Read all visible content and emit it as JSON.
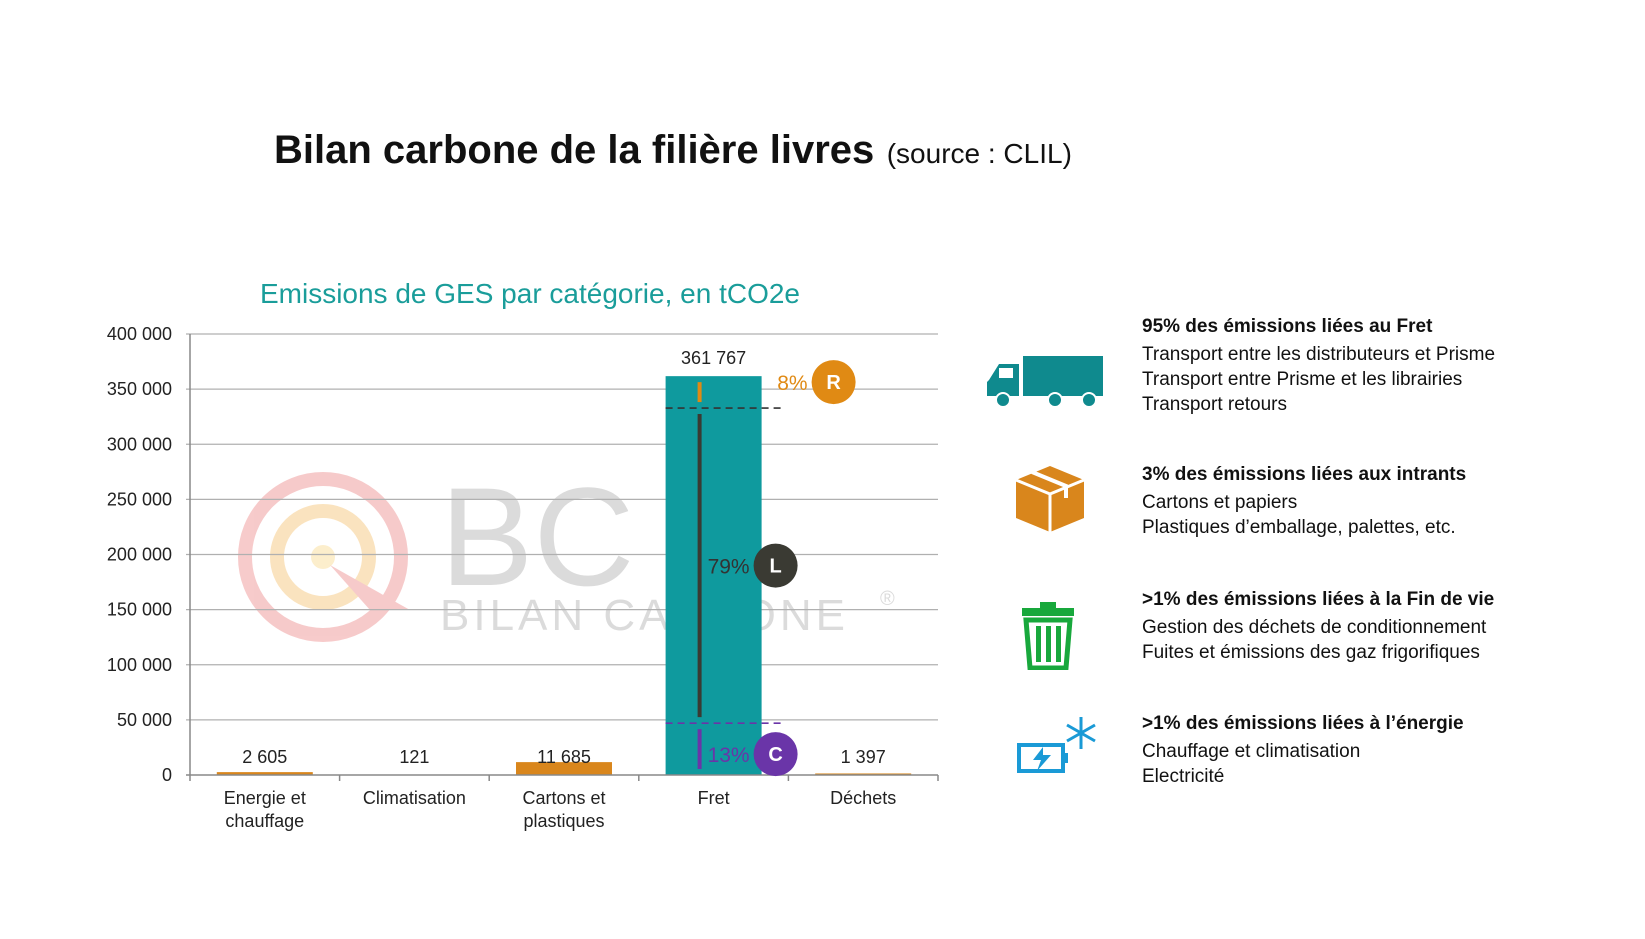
{
  "header": {
    "title": "Bilan carbone de la filière livres",
    "source": "(source : CLIL)"
  },
  "chart_data": {
    "type": "bar",
    "title": "Emissions de GES par catégorie, en tCO2e",
    "categories": [
      "Energie et chauffage",
      "Climatisation",
      "Cartons et plastiques",
      "Fret",
      "Déchets"
    ],
    "category_lines": [
      [
        "Energie et",
        "chauffage"
      ],
      [
        "Climatisation"
      ],
      [
        "Cartons et",
        "plastiques"
      ],
      [
        "Fret"
      ],
      [
        "Déchets"
      ]
    ],
    "values": [
      2605,
      121,
      11685,
      361767,
      1397
    ],
    "value_labels": [
      "2 605",
      "121",
      "11 685",
      "361 767",
      "1 397"
    ],
    "bar_colors": [
      "#d9861c",
      "#d9861c",
      "#d9861c",
      "#0f9a9e",
      "#d9861c"
    ],
    "ylim": [
      0,
      400000
    ],
    "yticks": [
      0,
      50000,
      100000,
      150000,
      200000,
      250000,
      300000,
      350000,
      400000
    ],
    "ytick_labels": [
      "0",
      "50  000",
      "100  000",
      "150  000",
      "200  000",
      "250  000",
      "300  000",
      "350  000",
      "400  000"
    ],
    "grid": true,
    "xlabel": "",
    "ylabel": "",
    "fret_breakdown": [
      {
        "letter": "R",
        "pct": "8%",
        "share": 0.08,
        "color": "#e08a14"
      },
      {
        "letter": "L",
        "pct": "79%",
        "share": 0.79,
        "color": "#3a3a33"
      },
      {
        "letter": "C",
        "pct": "13%",
        "share": 0.13,
        "color": "#6a35a8"
      }
    ]
  },
  "watermark": {
    "text_big": "BC",
    "text_small": "BILAN CARBONE",
    "mark": "®"
  },
  "legend": [
    {
      "icon": "truck-icon",
      "color": "#0f8a8e",
      "heading": "95% des émissions liées au Fret",
      "lines": [
        "Transport entre les distributeurs et Prisme",
        "Transport entre Prisme et les librairies",
        "Transport retours"
      ]
    },
    {
      "icon": "box-icon",
      "color": "#d9861c",
      "heading": "3% des émissions liées aux intrants",
      "lines": [
        "Cartons et papiers",
        "Plastiques d’emballage, palettes, etc."
      ]
    },
    {
      "icon": "trash-icon",
      "color": "#18a83c",
      "heading": ">1% des émissions liées à la Fin de vie",
      "lines": [
        "Gestion des déchets de conditionnement",
        "Fuites et émissions des gaz frigorifiques"
      ]
    },
    {
      "icon": "energy-snowflake-icon",
      "color": "#1a9ad6",
      "heading": ">1% des émissions liées à l’énergie",
      "lines": [
        "Chauffage et climatisation",
        "Electricité"
      ]
    }
  ]
}
